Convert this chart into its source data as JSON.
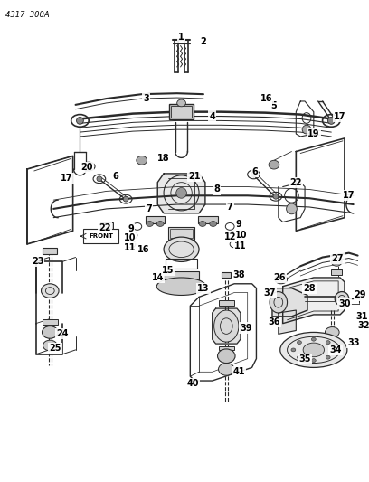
{
  "bg_color": "#ffffff",
  "line_color": "#2a2a2a",
  "label_color": "#000000",
  "diagram_id": "4317  300A",
  "fig_width": 4.08,
  "fig_height": 5.33,
  "dpi": 100,
  "font_size_labels": 7,
  "font_size_diagram_id": 6,
  "font_size_front": 5
}
